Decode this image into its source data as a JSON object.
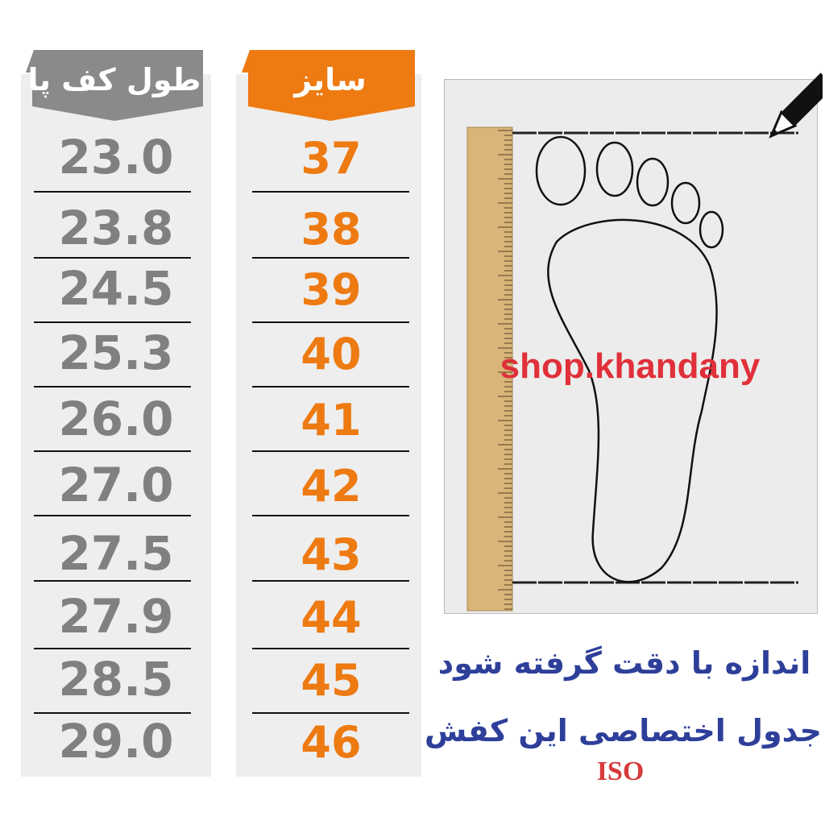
{
  "headers": {
    "foot_length": "طول کف پا",
    "size": "سایز"
  },
  "rows": [
    {
      "length": "23.0",
      "size": "37"
    },
    {
      "length": "23.8",
      "size": "38"
    },
    {
      "length": "24.5",
      "size": "39"
    },
    {
      "length": "25.3",
      "size": "40"
    },
    {
      "length": "26.0",
      "size": "41"
    },
    {
      "length": "27.0",
      "size": "42"
    },
    {
      "length": "27.5",
      "size": "43"
    },
    {
      "length": "27.9",
      "size": "44"
    },
    {
      "length": "28.5",
      "size": "45"
    },
    {
      "length": "29.0",
      "size": "46"
    }
  ],
  "watermark": "shop.khandany",
  "notes": {
    "line1": "اندازه با دقت گرفته شود",
    "line2": "جدول اختصاصی این کفش",
    "standard": "ISO"
  },
  "colors": {
    "length": "#808080",
    "size": "#ee7a12",
    "note": "#2e3f9a",
    "watermark": "#e0303a"
  },
  "icons": {
    "pencil": "pencil-icon",
    "ruler": "ruler-icon",
    "foot": "foot-outline-icon"
  }
}
